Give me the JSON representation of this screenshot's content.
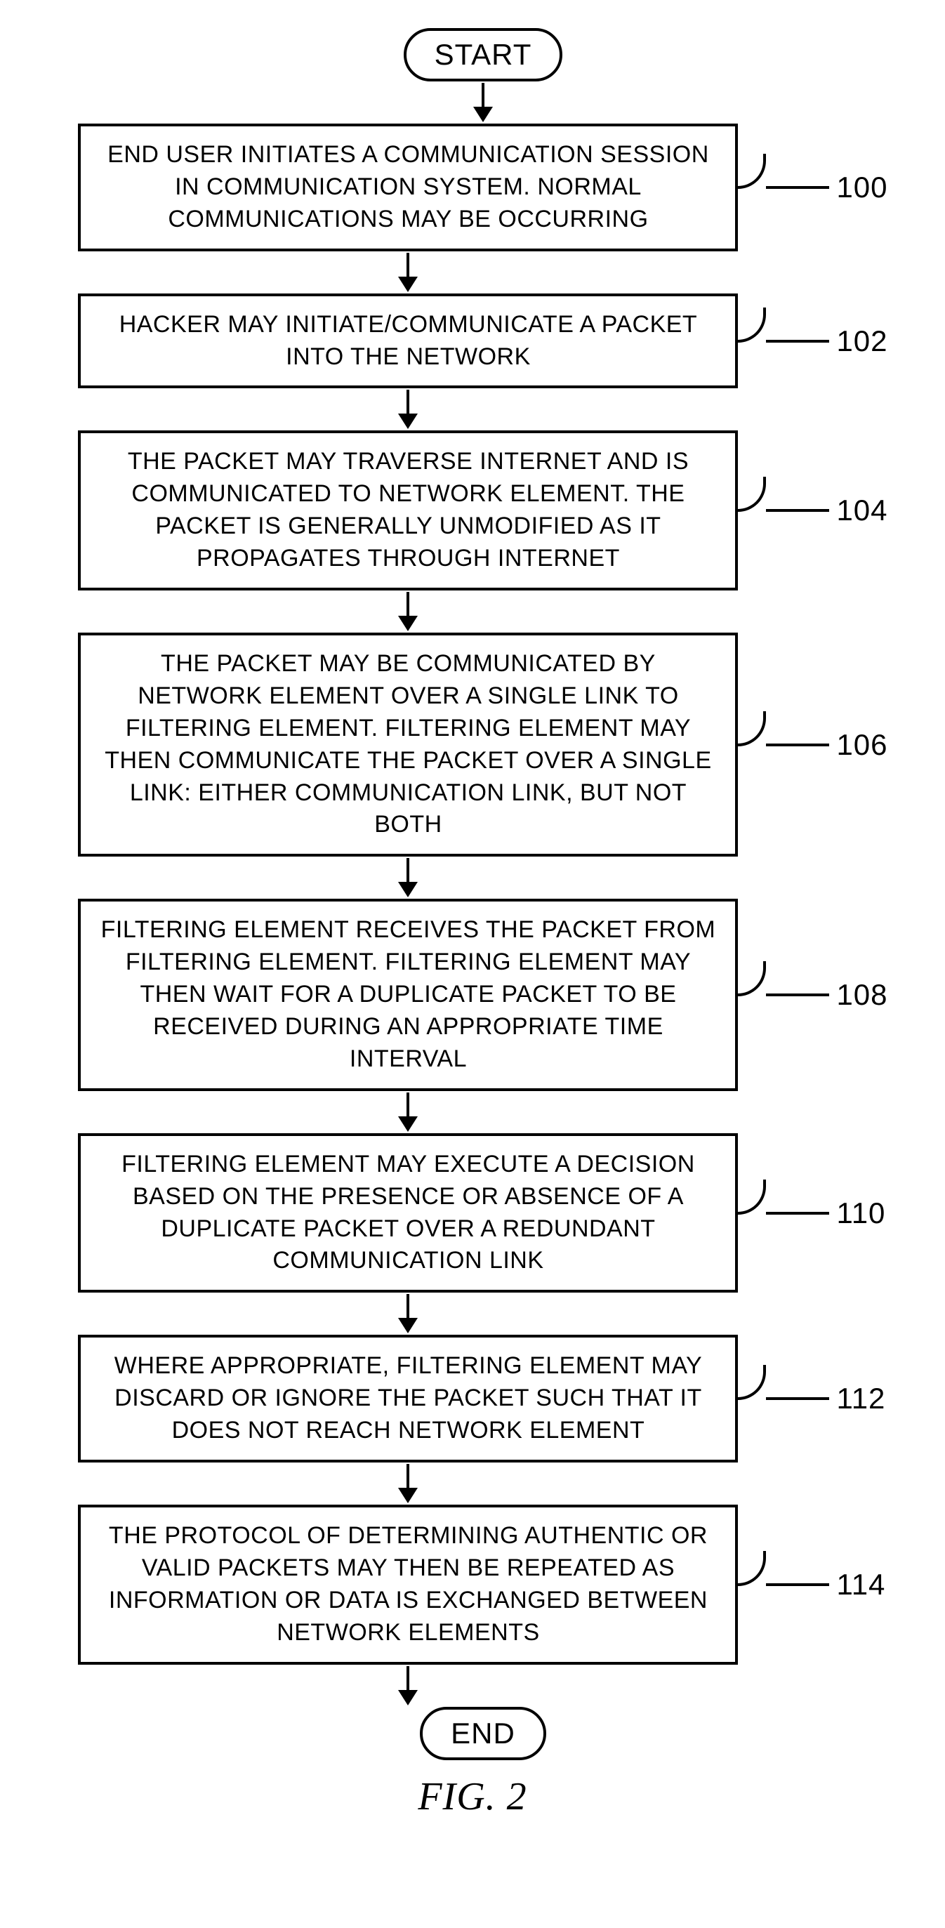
{
  "terminator_start": "START",
  "terminator_end": "END",
  "figure_label": "FIG. 2",
  "arrow_shaft_height": 34,
  "colors": {
    "stroke": "#000000",
    "background": "#ffffff"
  },
  "steps": [
    {
      "ref": "100",
      "text": "END USER INITIATES A COMMUNICATION SESSION IN COMMUNICATION SYSTEM. NORMAL COMMUNICATIONS MAY BE OCCURRING"
    },
    {
      "ref": "102",
      "text": "HACKER MAY INITIATE/COMMUNICATE A PACKET INTO THE NETWORK"
    },
    {
      "ref": "104",
      "text": "THE PACKET MAY TRAVERSE INTERNET AND IS COMMUNICATED TO NETWORK ELEMENT. THE PACKET IS GENERALLY UNMODIFIED AS IT PROPAGATES THROUGH INTERNET"
    },
    {
      "ref": "106",
      "text": "THE PACKET MAY BE COMMUNICATED BY NETWORK ELEMENT OVER A SINGLE LINK TO FILTERING ELEMENT. FILTERING ELEMENT MAY THEN COMMUNICATE THE PACKET OVER A SINGLE LINK: EITHER COMMUNICATION LINK, BUT NOT BOTH"
    },
    {
      "ref": "108",
      "text": "FILTERING ELEMENT RECEIVES THE PACKET FROM FILTERING ELEMENT. FILTERING ELEMENT MAY THEN WAIT FOR A DUPLICATE PACKET TO BE RECEIVED DURING AN APPROPRIATE TIME INTERVAL"
    },
    {
      "ref": "110",
      "text": "FILTERING ELEMENT MAY EXECUTE A DECISION BASED ON THE PRESENCE OR ABSENCE OF A DUPLICATE PACKET OVER A REDUNDANT COMMUNICATION LINK"
    },
    {
      "ref": "112",
      "text": "WHERE APPROPRIATE, FILTERING ELEMENT MAY DISCARD OR IGNORE THE PACKET SUCH THAT IT DOES NOT REACH NETWORK ELEMENT"
    },
    {
      "ref": "114",
      "text": "THE PROTOCOL OF DETERMINING AUTHENTIC OR VALID PACKETS MAY THEN BE REPEATED AS INFORMATION OR DATA IS EXCHANGED BETWEEN NETWORK ELEMENTS"
    }
  ]
}
